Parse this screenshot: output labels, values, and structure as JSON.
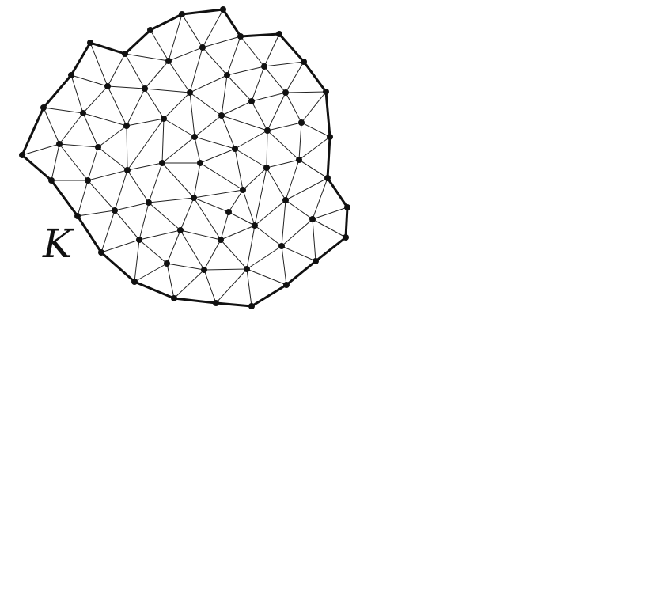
{
  "diagram": {
    "type": "triangulated-region",
    "label": "K",
    "colors": {
      "ink": "#111111",
      "background": "#ffffff"
    }
  }
}
